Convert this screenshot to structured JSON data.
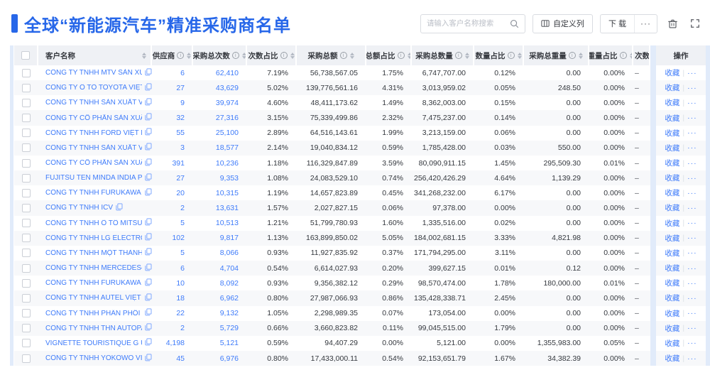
{
  "page": {
    "title": "全球“新能源汽车”精准采购商名单"
  },
  "toolbar": {
    "search_placeholder": "请输入客户名称搜索",
    "search_icon": "magnifier-icon",
    "customize_columns_label": "自定义列",
    "download_label": "下 载",
    "more_label": "···",
    "delete_icon": "trash-icon",
    "fullscreen_icon": "expand-icon"
  },
  "colors": {
    "accent": "#2767E9",
    "link": "#3E7BFA",
    "header_bg": "#EFF1F5",
    "stripe": "#F7F8FA",
    "fixed_strip": "#E1EBFA"
  },
  "table": {
    "action_labels": {
      "favorite": "收藏",
      "divider": "|",
      "more": "···"
    },
    "columns": [
      {
        "key": "check",
        "label": "",
        "sort": false,
        "info": false
      },
      {
        "key": "name",
        "label": "客户名称",
        "sort": true,
        "info": false
      },
      {
        "key": "supplier",
        "label": "供应商",
        "sort": true,
        "info": true
      },
      {
        "key": "times",
        "label": "采购总次数",
        "sort": true,
        "info": true
      },
      {
        "key": "timespct",
        "label": "次数占比",
        "sort": true,
        "info": true
      },
      {
        "key": "amount",
        "label": "采购总额",
        "sort": true,
        "info": true
      },
      {
        "key": "amountpct",
        "label": "总额占比",
        "sort": true,
        "info": true
      },
      {
        "key": "qty",
        "label": "采购总数量",
        "sort": true,
        "info": true
      },
      {
        "key": "qtypct",
        "label": "数量占比",
        "sort": true,
        "info": true
      },
      {
        "key": "weight",
        "label": "采购总重量",
        "sort": true,
        "info": true
      },
      {
        "key": "weightpct",
        "label": "重量占比",
        "sort": true,
        "info": true
      },
      {
        "key": "trend",
        "label": "次数趋势",
        "sort": false,
        "info": false
      },
      {
        "key": "actions",
        "label": "操作",
        "sort": false,
        "info": false
      }
    ],
    "rows": [
      {
        "name": "CÔNG TY TNHH MTV SẢN XUẤ...",
        "supplier": "6",
        "times": "62,410",
        "timespct": "7.19%",
        "amount": "56,738,567.05",
        "amountpct": "1.75%",
        "qty": "6,747,707.00",
        "qtypct": "0.12%",
        "weight": "0.00",
        "weightpct": "0.00%",
        "trend": "–"
      },
      {
        "name": "CÔNG TY Ô TÔ TOYOTA VIỆT ...",
        "supplier": "27",
        "times": "43,629",
        "timespct": "5.02%",
        "amount": "139,776,561.16",
        "amountpct": "4.31%",
        "qty": "3,013,959.02",
        "qtypct": "0.05%",
        "weight": "248.50",
        "weightpct": "0.00%",
        "trend": "–"
      },
      {
        "name": "CÔNG TY TNHH SẢN XUẤT VÀ ...",
        "supplier": "9",
        "times": "39,974",
        "timespct": "4.60%",
        "amount": "48,411,173.62",
        "amountpct": "1.49%",
        "qty": "8,362,003.00",
        "qtypct": "0.15%",
        "weight": "0.00",
        "weightpct": "0.00%",
        "trend": "–"
      },
      {
        "name": "CÔNG TY CỔ PHẦN SẢN XUẤT...",
        "supplier": "32",
        "times": "27,316",
        "timespct": "3.15%",
        "amount": "75,339,499.86",
        "amountpct": "2.32%",
        "qty": "7,475,237.00",
        "qtypct": "0.14%",
        "weight": "0.00",
        "weightpct": "0.00%",
        "trend": "–"
      },
      {
        "name": "CÔNG TY TNHH FORD VIỆT NAM",
        "supplier": "55",
        "times": "25,100",
        "timespct": "2.89%",
        "amount": "64,516,143.61",
        "amountpct": "1.99%",
        "qty": "3,213,159.00",
        "qtypct": "0.06%",
        "weight": "0.00",
        "weightpct": "0.00%",
        "trend": "–"
      },
      {
        "name": "CÔNG TY TNHH SẢN XUẤT VÀ ...",
        "supplier": "3",
        "times": "18,577",
        "timespct": "2.14%",
        "amount": "19,040,834.12",
        "amountpct": "0.59%",
        "qty": "1,785,428.00",
        "qtypct": "0.03%",
        "weight": "550.00",
        "weightpct": "0.00%",
        "trend": "–"
      },
      {
        "name": "CÔNG TY CỔ PHẦN SẢN XUẤT...",
        "supplier": "391",
        "times": "10,236",
        "timespct": "1.18%",
        "amount": "116,329,847.89",
        "amountpct": "3.59%",
        "qty": "80,090,911.15",
        "qtypct": "1.45%",
        "weight": "295,509.30",
        "weightpct": "0.01%",
        "trend": "–"
      },
      {
        "name": "FUJITSU TEN MINDA INDIA PVT...",
        "supplier": "27",
        "times": "9,353",
        "timespct": "1.08%",
        "amount": "24,083,529.10",
        "amountpct": "0.74%",
        "qty": "256,420,426.29",
        "qtypct": "4.64%",
        "weight": "1,139.29",
        "weightpct": "0.00%",
        "trend": "–"
      },
      {
        "name": "CÔNG TY TNHH FURUKAWA A...",
        "supplier": "20",
        "times": "10,315",
        "timespct": "1.19%",
        "amount": "14,657,823.89",
        "amountpct": "0.45%",
        "qty": "341,268,232.00",
        "qtypct": "6.17%",
        "weight": "0.00",
        "weightpct": "0.00%",
        "trend": "–"
      },
      {
        "name": "CÔNG TY TNHH ICV",
        "supplier": "2",
        "times": "13,631",
        "timespct": "1.57%",
        "amount": "2,027,827.15",
        "amountpct": "0.06%",
        "qty": "97,378.00",
        "qtypct": "0.00%",
        "weight": "0.00",
        "weightpct": "0.00%",
        "trend": "–"
      },
      {
        "name": "CÔNG TY TNHH Ô TÔ MITSUBI...",
        "supplier": "5",
        "times": "10,513",
        "timespct": "1.21%",
        "amount": "51,799,780.93",
        "amountpct": "1.60%",
        "qty": "1,335,516.00",
        "qtypct": "0.02%",
        "weight": "0.00",
        "weightpct": "0.00%",
        "trend": "–"
      },
      {
        "name": "CÔNG TY TNHH LG ELECTRON...",
        "supplier": "102",
        "times": "9,817",
        "timespct": "1.13%",
        "amount": "163,899,850.02",
        "amountpct": "5.05%",
        "qty": "184,002,681.15",
        "qtypct": "3.33%",
        "weight": "4,821.98",
        "weightpct": "0.00%",
        "trend": "–"
      },
      {
        "name": "CÔNG TY TNHH MỘT THÀNH V...",
        "supplier": "5",
        "times": "8,066",
        "timespct": "0.93%",
        "amount": "11,927,835.92",
        "amountpct": "0.37%",
        "qty": "171,794,295.00",
        "qtypct": "3.11%",
        "weight": "0.00",
        "weightpct": "0.00%",
        "trend": "–"
      },
      {
        "name": "CÔNG TY TNHH MERCEDES–B...",
        "supplier": "6",
        "times": "4,704",
        "timespct": "0.54%",
        "amount": "6,614,027.93",
        "amountpct": "0.20%",
        "qty": "399,627.15",
        "qtypct": "0.01%",
        "weight": "0.12",
        "weightpct": "0.00%",
        "trend": "–"
      },
      {
        "name": "CÔNG TY TNHH FURUKAWA A...",
        "supplier": "10",
        "times": "8,092",
        "timespct": "0.93%",
        "amount": "9,356,382.12",
        "amountpct": "0.29%",
        "qty": "98,570,474.00",
        "qtypct": "1.78%",
        "weight": "180,000.00",
        "weightpct": "0.01%",
        "trend": "–"
      },
      {
        "name": "CÔNG TY TNHH AUTEL VIỆT N...",
        "supplier": "18",
        "times": "6,962",
        "timespct": "0.80%",
        "amount": "27,987,066.93",
        "amountpct": "0.86%",
        "qty": "135,428,338.71",
        "qtypct": "2.45%",
        "weight": "0.00",
        "weightpct": "0.00%",
        "trend": "–"
      },
      {
        "name": "CÔNG TY TNHH PHÂN PHỐI T...",
        "supplier": "22",
        "times": "9,132",
        "timespct": "1.05%",
        "amount": "2,298,989.35",
        "amountpct": "0.07%",
        "qty": "173,054.00",
        "qtypct": "0.00%",
        "weight": "0.00",
        "weightpct": "0.00%",
        "trend": "–"
      },
      {
        "name": "CÔNG TY TNHH THN AUTOPAR...",
        "supplier": "2",
        "times": "5,729",
        "timespct": "0.66%",
        "amount": "3,660,823.82",
        "amountpct": "0.11%",
        "qty": "99,045,515.00",
        "qtypct": "1.79%",
        "weight": "0.00",
        "weightpct": "0.00%",
        "trend": "–"
      },
      {
        "name": "VIGNETTE TOURISTIQUE G UNI...",
        "supplier": "4,198",
        "times": "5,121",
        "timespct": "0.59%",
        "amount": "94,407.29",
        "amountpct": "0.00%",
        "qty": "5,121.00",
        "qtypct": "0.00%",
        "weight": "1,355,983.00",
        "weightpct": "0.05%",
        "trend": "–"
      },
      {
        "name": "CÔNG TY TNHH YOKOWO VIỆT...",
        "supplier": "45",
        "times": "6,976",
        "timespct": "0.80%",
        "amount": "17,433,000.11",
        "amountpct": "0.54%",
        "qty": "92,153,651.79",
        "qtypct": "1.67%",
        "weight": "34,382.39",
        "weightpct": "0.00%",
        "trend": "–"
      }
    ]
  }
}
